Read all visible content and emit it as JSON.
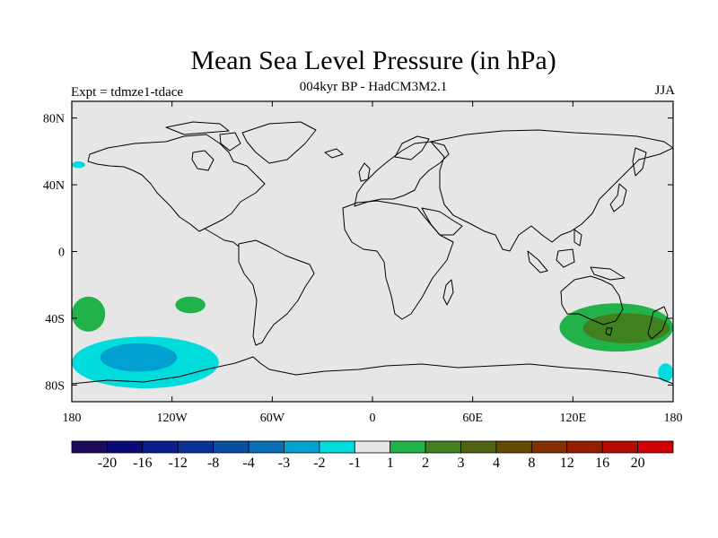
{
  "title": "Mean Sea Level Pressure (in hPa)",
  "subtitle": "004kyr BP - HadCM3M2.1",
  "experiment": "Expt = tdmze1-tdace",
  "season": "JJA",
  "map": {
    "projection": "cylindrical equidistant",
    "lon_range": [
      -180,
      180
    ],
    "lat_range": [
      -90,
      90
    ],
    "background_color": "#e6e6e6",
    "coastline_color": "#000000",
    "lon_ticks": [
      {
        "value": -180,
        "label": "180"
      },
      {
        "value": -120,
        "label": "120W"
      },
      {
        "value": -60,
        "label": "60W"
      },
      {
        "value": 0,
        "label": "0"
      },
      {
        "value": 60,
        "label": "60E"
      },
      {
        "value": 120,
        "label": "120E"
      },
      {
        "value": 180,
        "label": "180"
      }
    ],
    "lat_ticks": [
      {
        "value": 80,
        "label": "80N"
      },
      {
        "value": 40,
        "label": "40N"
      },
      {
        "value": 0,
        "label": "0"
      },
      {
        "value": -40,
        "label": "40S"
      },
      {
        "value": -80,
        "label": "80S"
      }
    ],
    "anomaly_regions": [
      {
        "name": "north-pacific-negative",
        "level": "-1 to -2",
        "color": "#00dcdc",
        "lon_min": -180,
        "lon_max": -172,
        "lat_min": 50,
        "lat_max": 54
      },
      {
        "name": "south-pacific-positive-west",
        "level": "1 to 2",
        "color": "#21b24a",
        "lon_min": -180,
        "lon_max": -160,
        "lat_min": -48,
        "lat_max": -27
      },
      {
        "name": "south-pacific-positive-east",
        "level": "1 to 2",
        "color": "#21b24a",
        "lon_min": -118,
        "lon_max": -100,
        "lat_min": -37,
        "lat_max": -27
      },
      {
        "name": "southern-ocean-negative",
        "level": "-1 to -2",
        "color": "#00dcdc",
        "lon_min": -180,
        "lon_max": -92,
        "lat_min": -82,
        "lat_max": -51
      },
      {
        "name": "southern-ocean-negative-core",
        "level": "-2 to -3",
        "color": "#00a0d0",
        "lon_min": -163,
        "lon_max": -117,
        "lat_min": -72,
        "lat_max": -55
      },
      {
        "name": "tasman-positive",
        "level": "1 to 2",
        "color": "#21b24a",
        "lon_min": 112,
        "lon_max": 180,
        "lat_min": -60,
        "lat_max": -31
      },
      {
        "name": "tasman-positive-core",
        "level": "2 to 3",
        "color": "#41801e",
        "lon_min": 126,
        "lon_max": 178,
        "lat_min": -55,
        "lat_max": -37
      },
      {
        "name": "ross-sea-negative",
        "level": "-1 to -2",
        "color": "#00dcdc",
        "lon_min": 171,
        "lon_max": 180,
        "lat_min": -78,
        "lat_max": -67
      }
    ]
  },
  "colorbar": {
    "levels": [
      "-20",
      "-16",
      "-12",
      "-8",
      "-4",
      "-3",
      "-2",
      "-1",
      "1",
      "2",
      "3",
      "4",
      "8",
      "12",
      "16",
      "20"
    ],
    "colors": [
      "#1e0a5a",
      "#0a0a78",
      "#0a1e8c",
      "#0a3296",
      "#0a50a0",
      "#0a6eb4",
      "#00a0d0",
      "#00dcdc",
      "#e6e6e6",
      "#21b24a",
      "#41801e",
      "#506414",
      "#644b00",
      "#823200",
      "#961e00",
      "#b40a00",
      "#d20000"
    ]
  }
}
